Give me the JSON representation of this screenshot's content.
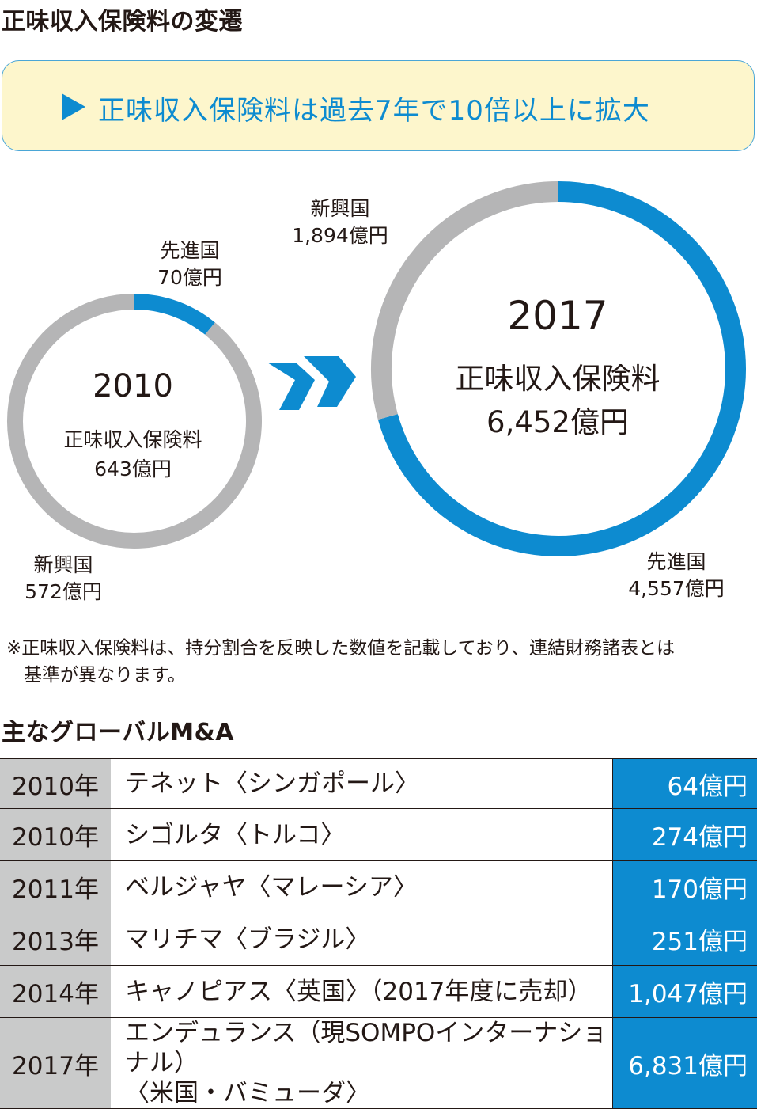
{
  "section1_title": "正味収入保険料の変遷",
  "callout": "正味収入保険料は過去7年で10倍以上に拡大",
  "chart_data": [
    {
      "type": "donut",
      "year": "2010",
      "center_label": "正味収入保険料",
      "total": "643億円",
      "segments": [
        {
          "name": "先進国",
          "value": 70,
          "label": "70億円"
        },
        {
          "name": "新興国",
          "value": 572,
          "label": "572億円"
        }
      ]
    },
    {
      "type": "donut",
      "year": "2017",
      "center_label": "正味収入保険料",
      "total": "6,452億円",
      "segments": [
        {
          "name": "先進国",
          "value": 4557,
          "label": "4,557億円"
        },
        {
          "name": "新興国",
          "value": 1894,
          "label": "1,894億円"
        }
      ]
    }
  ],
  "colors": {
    "developed": "#0d8bd0",
    "emerging": "#b5b5b6",
    "callout_bg": "#fdf6cc",
    "year_bg": "#c9caca"
  },
  "note_line1": "※正味収入保険料は、持分割合を反映した数値を記載しており、連結財務諸表とは",
  "note_line2": "基準が異なります。",
  "section2_title": "主なグローバルM&A",
  "ma_rows": [
    {
      "year": "2010年",
      "name": "テネット〈シンガポール〉",
      "name2": "",
      "amount": "64億円"
    },
    {
      "year": "2010年",
      "name": "シゴルタ〈トルコ〉",
      "name2": "",
      "amount": "274億円"
    },
    {
      "year": "2011年",
      "name": "ベルジャヤ〈マレーシア〉",
      "name2": "",
      "amount": "170億円"
    },
    {
      "year": "2013年",
      "name": "マリチマ〈ブラジル〉",
      "name2": "",
      "amount": "251億円"
    },
    {
      "year": "2014年",
      "name": "キャノピアス〈英国〉（2017年度に売却）",
      "name2": "",
      "amount": "1,047億円"
    },
    {
      "year": "2017年",
      "name": "エンデュランス（現SOMPOインターナショナル）",
      "name2": "〈米国・バミューダ〉",
      "amount": "6,831億円"
    }
  ]
}
